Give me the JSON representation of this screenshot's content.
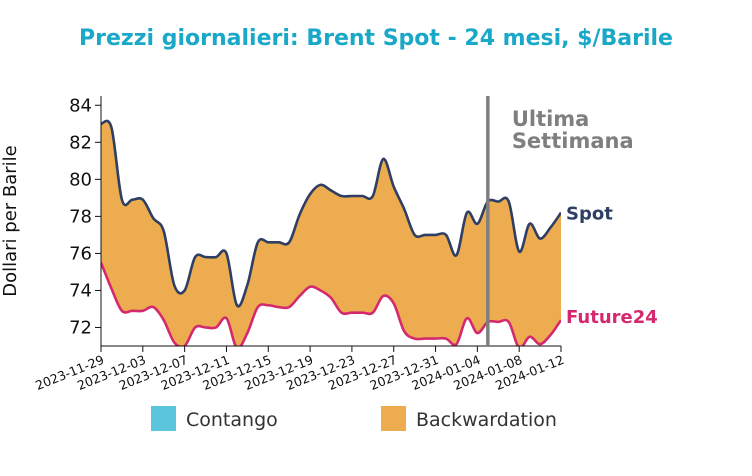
{
  "chart_data": {
    "type": "area",
    "title": "Prezzi giornalieri: Brent Spot - 24 mesi, $/Barile",
    "ylabel": "Dollari per Barile",
    "xlabel": "",
    "ylim": [
      71,
      84.5
    ],
    "yticks": [
      72,
      74,
      76,
      78,
      80,
      82,
      84
    ],
    "xtick_labels": [
      "2023-11-29",
      "2023-12-03",
      "2023-12-07",
      "2023-12-11",
      "2023-12-15",
      "2023-12-19",
      "2023-12-23",
      "2023-12-27",
      "2023-12-31",
      "2024-01-04",
      "2024-01-08",
      "2024-01-12"
    ],
    "annotation": [
      "Ultima",
      "Settimana"
    ],
    "marker_date": "2024-01-05",
    "x": [
      "2023-11-29",
      "2023-11-30",
      "2023-12-01",
      "2023-12-02",
      "2023-12-03",
      "2023-12-04",
      "2023-12-05",
      "2023-12-06",
      "2023-12-07",
      "2023-12-08",
      "2023-12-09",
      "2023-12-10",
      "2023-12-11",
      "2023-12-12",
      "2023-12-13",
      "2023-12-14",
      "2023-12-15",
      "2023-12-16",
      "2023-12-17",
      "2023-12-18",
      "2023-12-19",
      "2023-12-20",
      "2023-12-21",
      "2023-12-22",
      "2023-12-23",
      "2023-12-24",
      "2023-12-25",
      "2023-12-26",
      "2023-12-27",
      "2023-12-28",
      "2023-12-29",
      "2023-12-30",
      "2023-12-31",
      "2024-01-01",
      "2024-01-02",
      "2024-01-03",
      "2024-01-04",
      "2024-01-05",
      "2024-01-06",
      "2024-01-07",
      "2024-01-08",
      "2024-01-09",
      "2024-01-10",
      "2024-01-11",
      "2024-01-12"
    ],
    "series": [
      {
        "name": "Spot",
        "color": "#2e3f63",
        "values": [
          83.0,
          82.8,
          78.9,
          78.9,
          78.9,
          77.9,
          77.2,
          74.3,
          74.0,
          75.8,
          75.8,
          75.8,
          76.0,
          73.2,
          74.3,
          76.6,
          76.6,
          76.6,
          76.6,
          78.1,
          79.2,
          79.7,
          79.4,
          79.1,
          79.1,
          79.1,
          79.1,
          81.1,
          79.6,
          78.4,
          77.0,
          77.0,
          77.0,
          77.0,
          75.9,
          78.2,
          77.6,
          78.8,
          78.8,
          78.8,
          76.1,
          77.6,
          76.8,
          77.4,
          78.2
        ]
      },
      {
        "name": "Future24",
        "color": "#d4296f",
        "values": [
          75.5,
          74.1,
          72.9,
          72.9,
          72.9,
          73.1,
          72.4,
          71.2,
          71.0,
          72.0,
          72.0,
          72.0,
          72.5,
          70.9,
          71.7,
          73.1,
          73.2,
          73.1,
          73.1,
          73.7,
          74.2,
          74.0,
          73.6,
          72.8,
          72.8,
          72.8,
          72.8,
          73.7,
          73.3,
          71.8,
          71.4,
          71.4,
          71.4,
          71.4,
          71.1,
          72.5,
          71.7,
          72.3,
          72.3,
          72.3,
          70.9,
          71.5,
          71.1,
          71.6,
          72.4
        ]
      }
    ],
    "fill_colors": {
      "Contango": "#5bc5de",
      "Backwardation": "#edac4f"
    },
    "legend": [
      "Contango",
      "Backwardation"
    ],
    "legend_position": "bottom",
    "title_color": "#1aa8c8",
    "annotation_color": "#7f7f7f",
    "grid": false
  }
}
